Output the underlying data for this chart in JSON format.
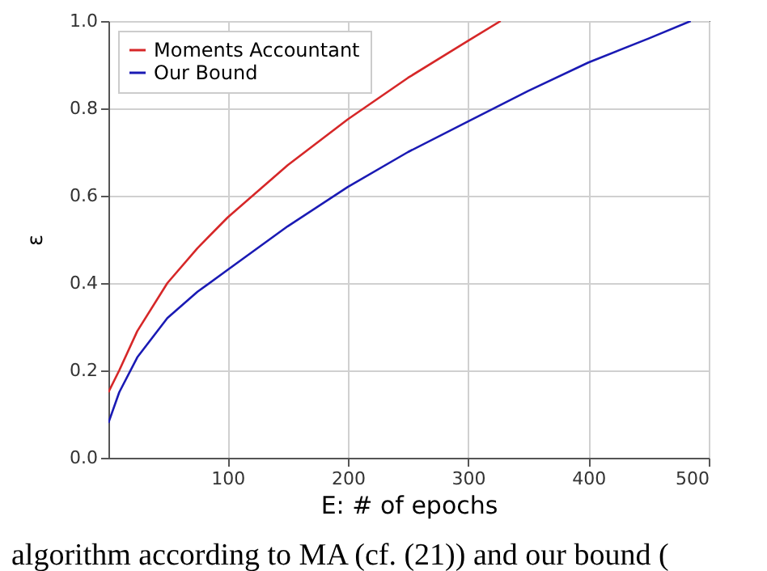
{
  "chart_data": {
    "type": "line",
    "xlabel": "E: # of epochs",
    "ylabel": "ε",
    "series": [
      {
        "name": "Moments Accountant",
        "color": "#d62728",
        "x": [
          1,
          10,
          25,
          50,
          75,
          100,
          150,
          200,
          250,
          300,
          327
        ],
        "values": [
          0.15,
          0.2,
          0.29,
          0.4,
          0.48,
          0.55,
          0.67,
          0.775,
          0.87,
          0.955,
          1.0
        ]
      },
      {
        "name": "Our Bound",
        "color": "#1a1ab4",
        "x": [
          1,
          10,
          25,
          50,
          75,
          100,
          150,
          200,
          250,
          300,
          350,
          400,
          450,
          485
        ],
        "values": [
          0.08,
          0.15,
          0.23,
          0.32,
          0.38,
          0.43,
          0.53,
          0.62,
          0.7,
          0.77,
          0.84,
          0.905,
          0.96,
          1.0
        ]
      }
    ],
    "xlim": [
      1,
      500
    ],
    "xticks": [
      100,
      200,
      300,
      400,
      500
    ],
    "ylim": [
      0,
      1
    ],
    "yticks": [
      {
        "value": 0,
        "label": "0.0"
      },
      0.2,
      0.4,
      0.6,
      0.8,
      {
        "value": 1,
        "label": "1.0"
      }
    ],
    "grid": true,
    "legend": "top left",
    "marker": "none",
    "line_style": "solid",
    "annotations": [
      "algorithm according to MA (cf. (21)) and our bound ("
    ]
  }
}
